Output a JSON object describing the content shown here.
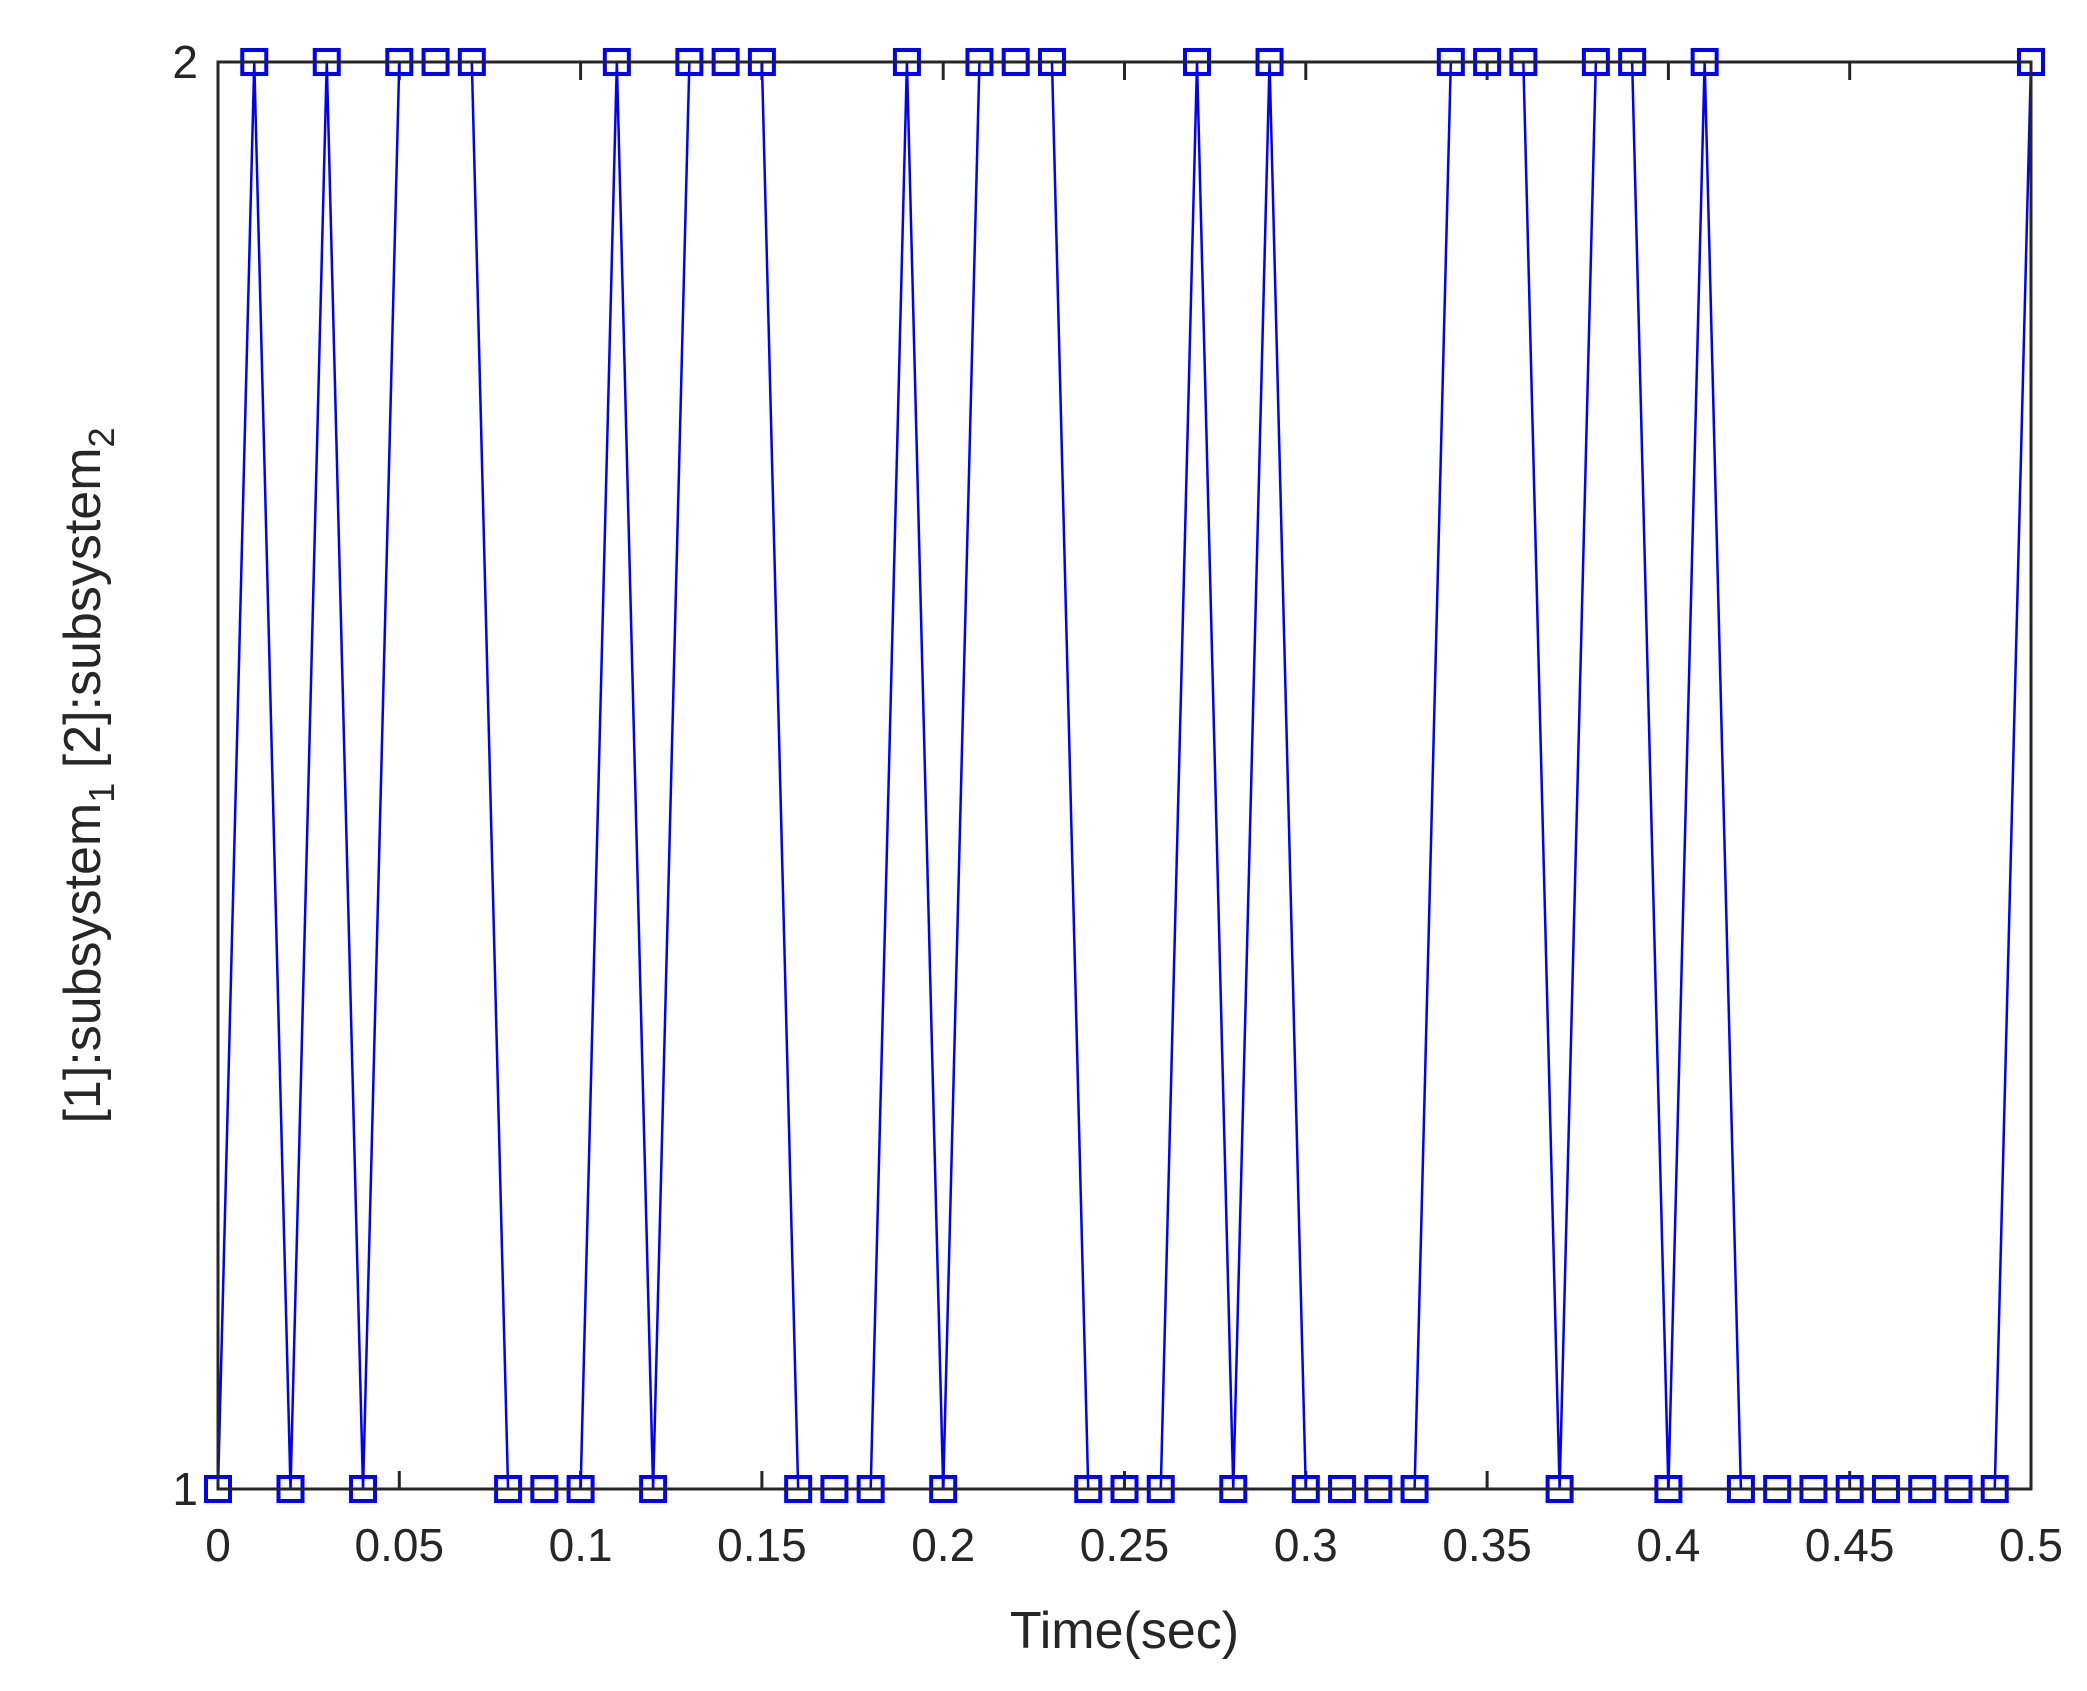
{
  "chart_data": {
    "type": "line",
    "xlabel": "Time(sec)",
    "ylabel": {
      "part1": "[1]:subsystem",
      "sub1": "1",
      "part2": " [2]:subsystem",
      "sub2": "2"
    },
    "xlim": [
      0,
      0.5
    ],
    "ylim": [
      1,
      2
    ],
    "xticks": [
      "0",
      "0.05",
      "0.1",
      "0.15",
      "0.2",
      "0.25",
      "0.3",
      "0.35",
      "0.4",
      "0.45",
      "0.5"
    ],
    "yticks": [
      "1",
      "2"
    ],
    "grid": false,
    "series": [
      {
        "color": "#0000ff",
        "marker": "square",
        "x": [
          0,
          0.01,
          0.02,
          0.03,
          0.04,
          0.05,
          0.06,
          0.07,
          0.08,
          0.09,
          0.1,
          0.11,
          0.12,
          0.13,
          0.14,
          0.15,
          0.16,
          0.17,
          0.18,
          0.19,
          0.2,
          0.21,
          0.22,
          0.23,
          0.24,
          0.25,
          0.26,
          0.27,
          0.28,
          0.29,
          0.3,
          0.31,
          0.32,
          0.33,
          0.34,
          0.35,
          0.36,
          0.37,
          0.38,
          0.39,
          0.4,
          0.41,
          0.42,
          0.43,
          0.44,
          0.45,
          0.46,
          0.47,
          0.48,
          0.49,
          0.5
        ],
        "y": [
          1,
          2,
          1,
          2,
          1,
          2,
          2,
          2,
          1,
          1,
          1,
          2,
          1,
          2,
          2,
          2,
          1,
          1,
          1,
          2,
          1,
          2,
          2,
          2,
          1,
          1,
          1,
          2,
          1,
          2,
          1,
          1,
          1,
          1,
          2,
          2,
          2,
          1,
          2,
          2,
          1,
          2,
          1,
          1,
          1,
          1,
          1,
          1,
          1,
          1,
          2
        ]
      }
    ]
  }
}
